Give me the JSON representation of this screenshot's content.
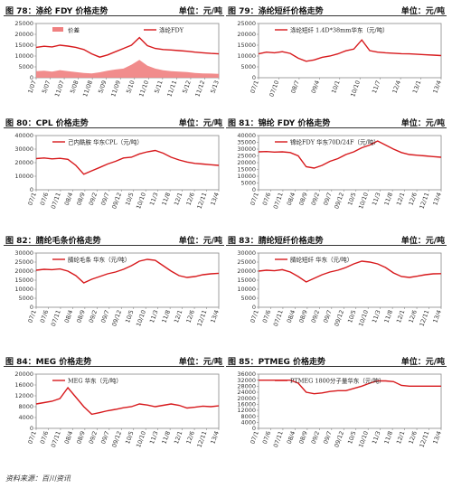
{
  "panels": [
    {
      "title": "图 78：涤纶 FDY 价格走势",
      "unit": "单位：元/吨",
      "chart_data": {
        "type": "line",
        "ylim": [
          0,
          25000
        ],
        "yticks": [
          0,
          5000,
          10000,
          15000,
          20000,
          25000
        ],
        "xticks": [
          "1/07",
          "5/07",
          "11/07",
          "5/08",
          "11/08",
          "5/09",
          "11/09",
          "5/10",
          "11/10",
          "5/11",
          "11/11",
          "5/12",
          "11/12",
          "5/13"
        ],
        "series": [
          {
            "name": "价差",
            "kind": "area",
            "color": "#f08080",
            "values": [
              3000,
              3200,
              2800,
              3500,
              3000,
              2600,
              2200,
              2000,
              2500,
              3200,
              3800,
              4200,
              6000,
              8200,
              5600,
              4200,
              3400,
              3000,
              2800,
              2600,
              2200,
              2000,
              1900,
              1800
            ]
          },
          {
            "name": "涤纶FDY",
            "kind": "line",
            "color": "#d7191c",
            "values": [
              14000,
              14500,
              14200,
              15000,
              14600,
              14000,
              13000,
              11000,
              9500,
              10500,
              12000,
              13500,
              15000,
              18500,
              14800,
              13500,
              13000,
              12800,
              12500,
              12200,
              11800,
              11500,
              11200,
              11000
            ]
          }
        ],
        "legend": "top"
      }
    },
    {
      "title": "图 79：涤纶短纤价格走势",
      "unit": "单位：元/吨",
      "chart_data": {
        "type": "line",
        "ylim": [
          0,
          25000
        ],
        "yticks": [
          0,
          5000,
          10000,
          15000,
          20000,
          25000
        ],
        "xticks": [
          "07/1",
          "07/10",
          "08/7",
          "09/4",
          "10/1",
          "10/10",
          "11/7",
          "12/4",
          "13/1",
          "13/4"
        ],
        "series": [
          {
            "name": "涤纶短纤 1.4D*38mm华东（元/吨）",
            "kind": "line",
            "color": "#d7191c",
            "values": [
              11000,
              11800,
              11500,
              12000,
              11200,
              9000,
              7600,
              8200,
              9400,
              10000,
              11000,
              12400,
              13200,
              17400,
              12500,
              11800,
              11500,
              11300,
              11100,
              11000,
              10800,
              10600,
              10400,
              10200
            ]
          }
        ],
        "legend": "top"
      }
    },
    {
      "title": "图 80：CPL 价格走势",
      "unit": "单位：元/吨",
      "chart_data": {
        "type": "line",
        "ylim": [
          0,
          40000
        ],
        "yticks": [
          0,
          10000,
          20000,
          30000,
          40000
        ],
        "xticks": [
          "07/1",
          "07/6",
          "07/11",
          "08/4",
          "08/9",
          "09/2",
          "09/7",
          "09/12",
          "10/5",
          "10/10",
          "11/3",
          "11/8",
          "12/1",
          "12/6",
          "12/11",
          "13/4"
        ],
        "series": [
          {
            "name": "己内酰胺 华东CPL（元/吨）",
            "kind": "line",
            "color": "#d7191c",
            "values": [
              23000,
              23500,
              22800,
              23200,
              22500,
              18000,
              11500,
              14000,
              16500,
              19000,
              21000,
              23500,
              24000,
              26500,
              28000,
              29000,
              27000,
              24000,
              22000,
              20500,
              19500,
              19000,
              18500,
              18000
            ]
          }
        ],
        "legend": "top"
      }
    },
    {
      "title": "图 81：锦纶 FDY 价格走势",
      "unit": "单位：元/吨",
      "chart_data": {
        "type": "line",
        "ylim": [
          0,
          40000
        ],
        "yticks": [
          0,
          5000,
          10000,
          15000,
          20000,
          25000,
          30000,
          35000,
          40000
        ],
        "xticks": [
          "07/1",
          "07/6",
          "07/11",
          "08/4",
          "08/9",
          "09/2",
          "09/7",
          "09/12",
          "10/5",
          "10/10",
          "11/3",
          "11/8",
          "12/1",
          "12/6",
          "12/11",
          "13/4"
        ],
        "series": [
          {
            "name": "锦纶FDY 华东70D/24F（元/吨）",
            "kind": "line",
            "color": "#d7191c",
            "values": [
              28000,
              28200,
              27800,
              28000,
              27500,
              25000,
              17000,
              16000,
              18000,
              21000,
              23000,
              26000,
              28000,
              31000,
              33000,
              36000,
              33000,
              30000,
              27500,
              26000,
              25500,
              25000,
              24500,
              24000
            ]
          }
        ],
        "legend": "top"
      }
    },
    {
      "title": "图 82：腈纶毛条价格走势",
      "unit": "单位：元/吨",
      "chart_data": {
        "type": "line",
        "ylim": [
          0,
          30000
        ],
        "yticks": [
          0,
          5000,
          10000,
          15000,
          20000,
          25000,
          30000
        ],
        "xticks": [
          "07/1",
          "07/6",
          "07/11",
          "08/4",
          "08/9",
          "09/2",
          "09/7",
          "09/12",
          "10/5",
          "10/10",
          "11/3",
          "11/8",
          "12/1",
          "12/6",
          "12/11",
          "13/4"
        ],
        "series": [
          {
            "name": "腈纶毛条 华东（元/吨）",
            "kind": "line",
            "color": "#d7191c",
            "values": [
              20500,
              21000,
              20800,
              21200,
              20000,
              17500,
              13500,
              15500,
              17000,
              18500,
              19500,
              21000,
              23000,
              25500,
              26500,
              26000,
              23000,
              20000,
              17500,
              16500,
              17000,
              18000,
              18500,
              18800
            ]
          }
        ],
        "legend": "top"
      }
    },
    {
      "title": "图 83：腈纶短纤价格走势",
      "unit": "单位：元/吨",
      "chart_data": {
        "type": "line",
        "ylim": [
          0,
          30000
        ],
        "yticks": [
          0,
          5000,
          10000,
          15000,
          20000,
          25000,
          30000
        ],
        "xticks": [
          "07/1",
          "07/6",
          "07/11",
          "08/4",
          "08/9",
          "09/2",
          "09/7",
          "09/12",
          "10/5",
          "10/10",
          "11/3",
          "11/8",
          "12/1",
          "12/6",
          "12/11",
          "13/4"
        ],
        "series": [
          {
            "name": "腈纶短纤 华东（元/吨）",
            "kind": "line",
            "color": "#d7191c",
            "values": [
              20000,
              20500,
              20200,
              20800,
              19500,
              17000,
              14000,
              16000,
              18000,
              19500,
              20500,
              22000,
              24000,
              25500,
              25000,
              24000,
              22000,
              19000,
              17000,
              16500,
              17200,
              18000,
              18500,
              18600
            ]
          }
        ],
        "legend": "top"
      }
    },
    {
      "title": "图 84：MEG 价格走势",
      "unit": "单位：元/吨",
      "chart_data": {
        "type": "line",
        "ylim": [
          0,
          20000
        ],
        "yticks": [
          0,
          4000,
          8000,
          12000,
          16000,
          20000
        ],
        "xticks": [
          "07/1",
          "07/6",
          "07/11",
          "08/4",
          "08/9",
          "09/2",
          "09/7",
          "09/12",
          "10/5",
          "10/10",
          "11/3",
          "11/8",
          "12/1",
          "12/6",
          "12/11",
          "13/4"
        ],
        "series": [
          {
            "name": "MEG 华东（元/吨）",
            "kind": "line",
            "color": "#d7191c",
            "values": [
              9000,
              9500,
              10000,
              11000,
              15000,
              11500,
              8000,
              5200,
              5800,
              6500,
              7000,
              7600,
              8000,
              9000,
              8600,
              8000,
              8500,
              9000,
              8500,
              7500,
              7800,
              8200,
              8000,
              8300
            ]
          }
        ],
        "legend": "top"
      }
    },
    {
      "title": "图 85：PTMEG 价格走势",
      "unit": "单位：元/吨",
      "chart_data": {
        "type": "line",
        "ylim": [
          0,
          36000
        ],
        "yticks": [
          0,
          4000,
          8000,
          12000,
          16000,
          20000,
          24000,
          28000,
          32000,
          36000
        ],
        "xticks": [
          "07/1",
          "07/6",
          "07/11",
          "08/4",
          "08/9",
          "09/2",
          "09/7",
          "09/12",
          "10/5",
          "10/10",
          "11/3",
          "11/8",
          "12/1",
          "12/6",
          "12/11",
          "13/4"
        ],
        "series": [
          {
            "name": "PTMEG 1800分子量华东（元/吨）",
            "kind": "line",
            "color": "#d7191c",
            "values": [
              32000,
              32000,
              32000,
              32000,
              32000,
              30000,
              24000,
              23000,
              23500,
              24500,
              25000,
              25000,
              26500,
              28000,
              30000,
              31500,
              31500,
              31000,
              28500,
              28000,
              28000,
              28000,
              28000,
              28000
            ]
          }
        ],
        "legend": "top"
      }
    }
  ],
  "footer": "资料来源：百川资讯"
}
